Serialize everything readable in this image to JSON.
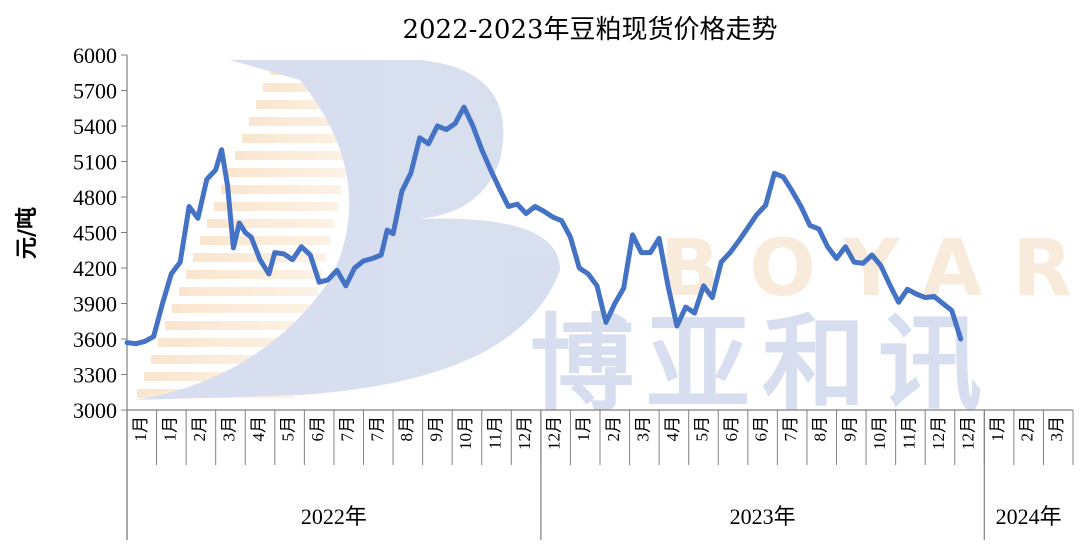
{
  "chart_data": {
    "type": "line",
    "title": "2022-2023年豆粕现货价格走势",
    "ylabel": "元/吨",
    "xlabel": "",
    "ylim": [
      3000,
      6000
    ],
    "yticks": [
      6000,
      5700,
      5400,
      5100,
      4800,
      4500,
      4200,
      3900,
      3600,
      3300,
      3000
    ],
    "x_tick_labels": [
      "1月",
      "1月",
      "2月",
      "3月",
      "4月",
      "5月",
      "6月",
      "7月",
      "7月",
      "8月",
      "9月",
      "10月",
      "11月",
      "12月",
      "12月",
      "1月",
      "2月",
      "3月",
      "4月",
      "5月",
      "6月",
      "6月",
      "7月",
      "8月",
      "9月",
      "10月",
      "11月",
      "12月",
      "12月",
      "1月",
      "2月",
      "3月"
    ],
    "year_groups": [
      {
        "label": "2022年",
        "start_tick": 0,
        "end_tick": 14
      },
      {
        "label": "2023年",
        "start_tick": 14,
        "end_tick": 29
      },
      {
        "label": "2024年",
        "start_tick": 29,
        "end_tick": 32
      }
    ],
    "grid": false,
    "legend": "none",
    "line_color": "#4472C4",
    "series": [
      {
        "x": [
          0.0,
          0.3,
          0.6,
          0.9,
          1.2,
          1.5,
          1.8,
          2.1,
          2.4,
          2.7,
          3.0,
          3.2,
          3.4,
          3.6,
          3.8,
          4.0,
          4.2,
          4.5,
          4.8,
          5.0,
          5.3,
          5.6,
          5.9,
          6.2,
          6.5,
          6.8,
          7.1,
          7.4,
          7.7,
          8.0,
          8.3,
          8.6,
          8.8,
          9.0,
          9.3,
          9.6,
          9.9,
          10.2,
          10.5,
          10.8,
          11.1,
          11.4,
          11.7,
          12.0,
          12.3,
          12.6,
          12.9,
          13.2,
          13.5,
          13.8,
          14.1,
          14.4,
          14.7,
          15.0,
          15.3,
          15.6,
          15.9,
          16.2,
          16.5,
          16.8,
          17.1,
          17.4,
          17.7,
          18.0,
          18.3,
          18.6,
          18.9,
          19.2,
          19.5,
          19.8,
          20.1,
          20.4,
          20.7,
          21.0,
          21.3,
          21.6,
          21.9,
          22.2,
          22.5,
          22.8,
          23.1,
          23.4,
          23.7,
          24.0,
          24.3,
          24.6,
          24.9,
          25.2,
          25.5,
          25.8,
          26.1,
          26.4,
          26.7,
          27.0,
          27.3,
          27.6,
          27.9,
          28.2,
          28.5,
          28.8,
          29.1,
          29.4
        ],
        "values": [
          3570,
          3560,
          3580,
          3620,
          3900,
          4150,
          4250,
          4720,
          4620,
          4950,
          5030,
          5200,
          4900,
          4370,
          4580,
          4500,
          4460,
          4270,
          4150,
          4330,
          4320,
          4270,
          4380,
          4310,
          4080,
          4100,
          4180,
          4050,
          4200,
          4260,
          4280,
          4310,
          4520,
          4490,
          4850,
          5000,
          5300,
          5250,
          5400,
          5370,
          5420,
          5560,
          5400,
          5200,
          5030,
          4870,
          4720,
          4740,
          4660,
          4720,
          4680,
          4630,
          4600,
          4460,
          4200,
          4150,
          4050,
          3740,
          3900,
          4030,
          4480,
          4330,
          4330,
          4450,
          4050,
          3710,
          3870,
          3820,
          4050,
          3950,
          4250,
          4330,
          4430,
          4540,
          4650,
          4730,
          5000,
          4970,
          4850,
          4720,
          4560,
          4530,
          4380,
          4280,
          4380,
          4250,
          4240,
          4310,
          4220,
          4060,
          3910,
          4020,
          3980,
          3950,
          3960,
          3900,
          3840,
          3600,
          null,
          null,
          null,
          null
        ]
      }
    ]
  }
}
